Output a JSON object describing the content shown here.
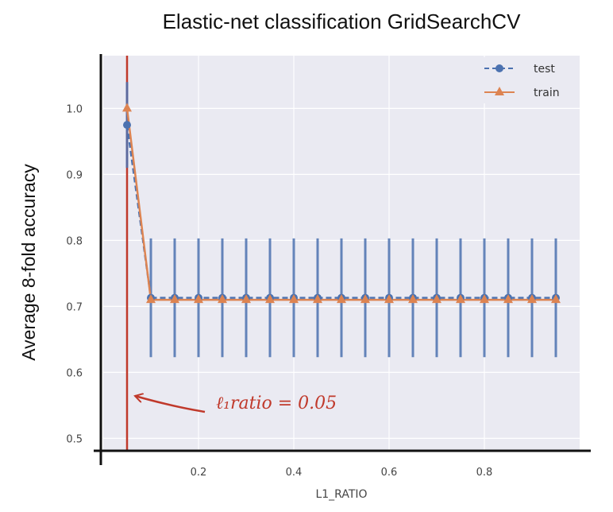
{
  "chart_data": {
    "type": "line",
    "title": "Elastic-net classification GridSearchCV",
    "xlabel": "L1_RATIO",
    "ylabel": "Average 8-fold accuracy",
    "xlim": [
      0.0,
      1.0
    ],
    "ylim": [
      0.48,
      1.08
    ],
    "xticks": [
      "0.2",
      "0.4",
      "0.6",
      "0.8"
    ],
    "xtick_values": [
      0.2,
      0.4,
      0.6,
      0.8
    ],
    "yticks": [
      "0.5",
      "0.6",
      "0.7",
      "0.8",
      "0.9",
      "1.0"
    ],
    "ytick_values": [
      0.5,
      0.6,
      0.7,
      0.8,
      0.9,
      1.0
    ],
    "grid": true,
    "legend_position": "top-right",
    "x": [
      0.05,
      0.1,
      0.15,
      0.2,
      0.25,
      0.3,
      0.35,
      0.4,
      0.45,
      0.5,
      0.55,
      0.6,
      0.65,
      0.7,
      0.75,
      0.8,
      0.85,
      0.9,
      0.95
    ],
    "series": [
      {
        "name": "test",
        "color": "#4c72b0",
        "marker": "circle",
        "linestyle": "dashed",
        "values": [
          0.975,
          0.713,
          0.713,
          0.713,
          0.713,
          0.713,
          0.713,
          0.713,
          0.713,
          0.713,
          0.713,
          0.713,
          0.713,
          0.713,
          0.713,
          0.713,
          0.713,
          0.713,
          0.713
        ],
        "error": [
          0.065,
          0.09,
          0.09,
          0.09,
          0.09,
          0.09,
          0.09,
          0.09,
          0.09,
          0.09,
          0.09,
          0.09,
          0.09,
          0.09,
          0.09,
          0.09,
          0.09,
          0.09,
          0.09
        ]
      },
      {
        "name": "train",
        "color": "#dd8452",
        "marker": "triangle",
        "linestyle": "solid",
        "values": [
          1.0,
          0.71,
          0.71,
          0.71,
          0.71,
          0.71,
          0.71,
          0.71,
          0.71,
          0.71,
          0.71,
          0.71,
          0.71,
          0.71,
          0.71,
          0.71,
          0.71,
          0.71,
          0.71
        ]
      }
    ],
    "vline": {
      "x": 0.05,
      "color": "#c0392b"
    },
    "annotation": {
      "text": "ℓ₁ratio = 0.05",
      "color": "#c0392b"
    },
    "plot_background": "#eaeaf2"
  }
}
